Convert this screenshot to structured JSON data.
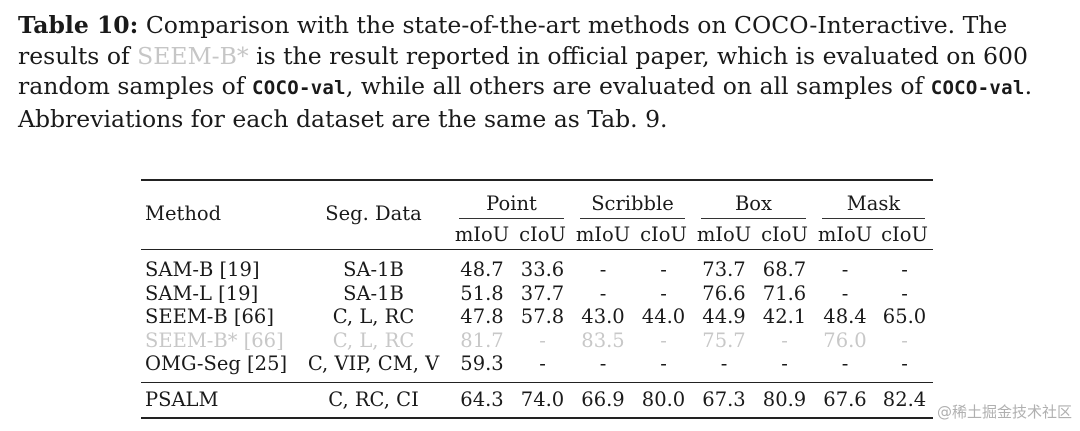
{
  "caption": {
    "label": "Table 10:",
    "text_1": " Comparison with the state-of-the-art methods on COCO-Interactive. The results of ",
    "faded_method": "SEEM-B*",
    "text_2": " is the result reported in official paper, which is evaluated on 600 random samples of ",
    "code_1": "COCO-val",
    "text_3": ", while all others are evaluated on all samples of ",
    "code_2": "COCO-val",
    "text_4": ". Abbreviations for each dataset are the same as Tab. 9."
  },
  "table": {
    "col_method": "Method",
    "col_seg_data": "Seg. Data",
    "groups": [
      "Point",
      "Scribble",
      "Box",
      "Mask"
    ],
    "sub_headers": [
      "mIoU",
      "cIoU",
      "mIoU",
      "cIoU",
      "mIoU",
      "cIoU",
      "mIoU",
      "cIoU"
    ],
    "rows": [
      {
        "method": "SAM-B [19]",
        "seg_data": "SA-1B",
        "values": [
          "48.7",
          "33.6",
          "-",
          "-",
          "73.7",
          "68.7",
          "-",
          "-"
        ]
      },
      {
        "method": "SAM-L [19]",
        "seg_data": "SA-1B",
        "values": [
          "51.8",
          "37.7",
          "-",
          "-",
          "76.6",
          "71.6",
          "-",
          "-"
        ]
      },
      {
        "method": "SEEM-B [66]",
        "seg_data": "C, L, RC",
        "values": [
          "47.8",
          "57.8",
          "43.0",
          "44.0",
          "44.9",
          "42.1",
          "48.4",
          "65.0"
        ]
      },
      {
        "method": "SEEM-B* [66]",
        "seg_data": "C, L, RC",
        "values": [
          "81.7",
          "-",
          "83.5",
          "-",
          "75.7",
          "-",
          "76.0",
          "-"
        ]
      },
      {
        "method": "OMG-Seg [25]",
        "seg_data": "C, VIP, CM, V",
        "values": [
          "59.3",
          "-",
          "-",
          "-",
          "-",
          "-",
          "-",
          "-"
        ]
      }
    ],
    "final_row": {
      "method": "PSALM",
      "seg_data": "C, RC, CI",
      "values": [
        "64.3",
        "74.0",
        "66.9",
        "80.0",
        "67.3",
        "80.9",
        "67.6",
        "82.4"
      ]
    }
  },
  "watermark": "@稀土掘金技术社区"
}
